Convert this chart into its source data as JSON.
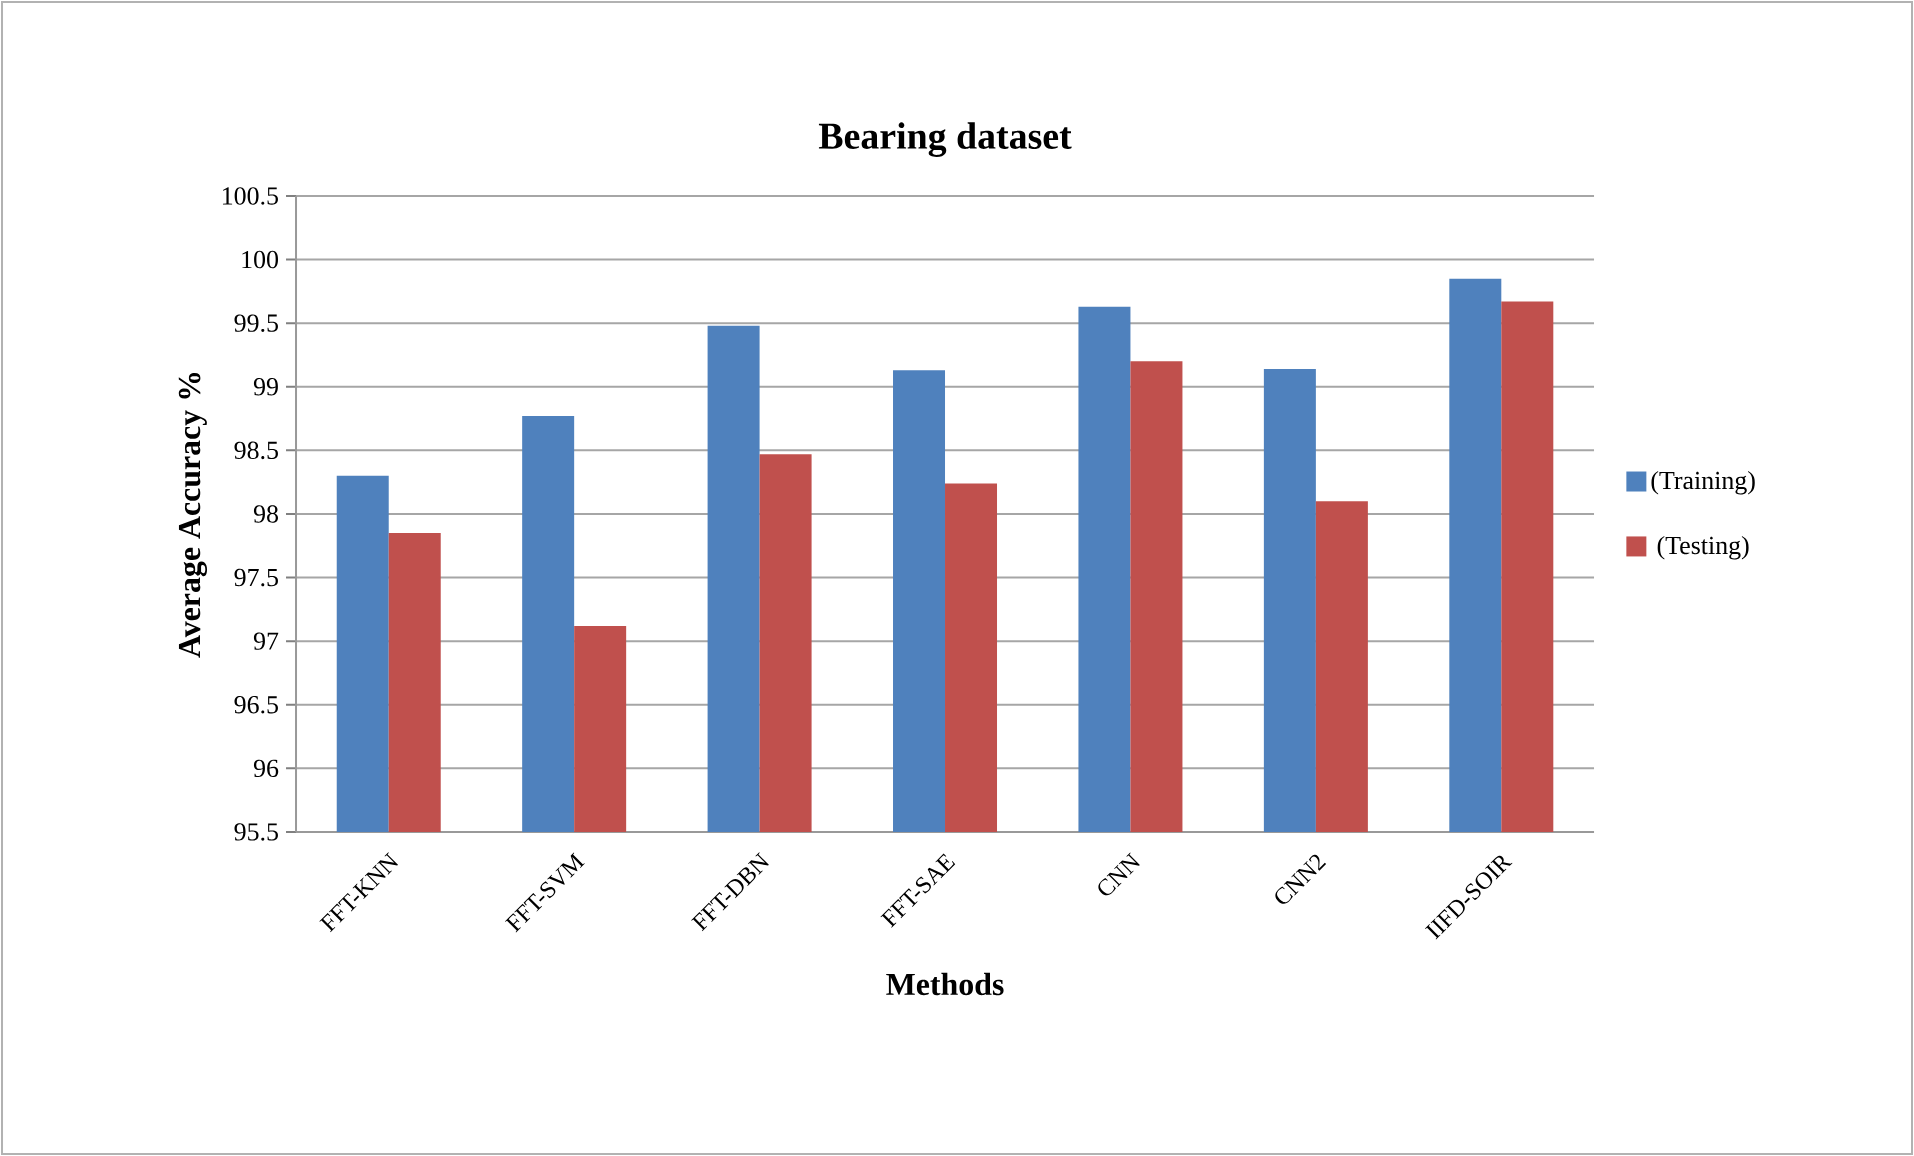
{
  "chart_data": {
    "type": "bar",
    "title": "Bearing dataset",
    "xlabel": "Methods",
    "ylabel": "Average Accuracy %",
    "categories": [
      "FFT-KNN",
      "FFT-SVM",
      "FFT-DBN",
      "FFT-SAE",
      "CNN",
      "CNN2",
      "IIFD-SOIR"
    ],
    "series": [
      {
        "name": "(Training)",
        "color": "#4f81bd",
        "values": [
          98.3,
          98.77,
          99.48,
          99.13,
          99.63,
          99.14,
          99.85
        ]
      },
      {
        "name": "(Testing)",
        "color": "#c0504d",
        "values": [
          97.85,
          97.12,
          98.47,
          98.24,
          99.2,
          98.1,
          99.67
        ]
      }
    ],
    "ylim": [
      95.5,
      100.5
    ],
    "yticks": [
      95.5,
      96,
      96.5,
      97,
      97.5,
      98,
      98.5,
      99,
      99.5,
      100,
      100.5
    ],
    "grid": "y",
    "legend": "right"
  }
}
